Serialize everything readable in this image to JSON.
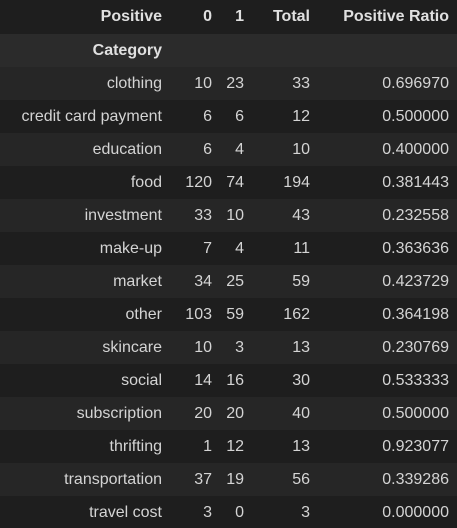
{
  "header": {
    "columns_label": "Positive",
    "col_0": "0",
    "col_1": "1",
    "col_total": "Total",
    "col_ratio": "Positive Ratio",
    "index_label": "Category"
  },
  "rows": [
    {
      "category": "clothing",
      "zero": "10",
      "one": "23",
      "total": "33",
      "ratio": "0.696970"
    },
    {
      "category": "credit card payment",
      "zero": "6",
      "one": "6",
      "total": "12",
      "ratio": "0.500000"
    },
    {
      "category": "education",
      "zero": "6",
      "one": "4",
      "total": "10",
      "ratio": "0.400000"
    },
    {
      "category": "food",
      "zero": "120",
      "one": "74",
      "total": "194",
      "ratio": "0.381443"
    },
    {
      "category": "investment",
      "zero": "33",
      "one": "10",
      "total": "43",
      "ratio": "0.232558"
    },
    {
      "category": "make-up",
      "zero": "7",
      "one": "4",
      "total": "11",
      "ratio": "0.363636"
    },
    {
      "category": "market",
      "zero": "34",
      "one": "25",
      "total": "59",
      "ratio": "0.423729"
    },
    {
      "category": "other",
      "zero": "103",
      "one": "59",
      "total": "162",
      "ratio": "0.364198"
    },
    {
      "category": "skincare",
      "zero": "10",
      "one": "3",
      "total": "13",
      "ratio": "0.230769"
    },
    {
      "category": "social",
      "zero": "14",
      "one": "16",
      "total": "30",
      "ratio": "0.533333"
    },
    {
      "category": "subscription",
      "zero": "20",
      "one": "20",
      "total": "40",
      "ratio": "0.500000"
    },
    {
      "category": "thrifting",
      "zero": "1",
      "one": "12",
      "total": "13",
      "ratio": "0.923077"
    },
    {
      "category": "transportation",
      "zero": "37",
      "one": "19",
      "total": "56",
      "ratio": "0.339286"
    },
    {
      "category": "travel cost",
      "zero": "3",
      "one": "0",
      "total": "3",
      "ratio": "0.000000"
    }
  ]
}
